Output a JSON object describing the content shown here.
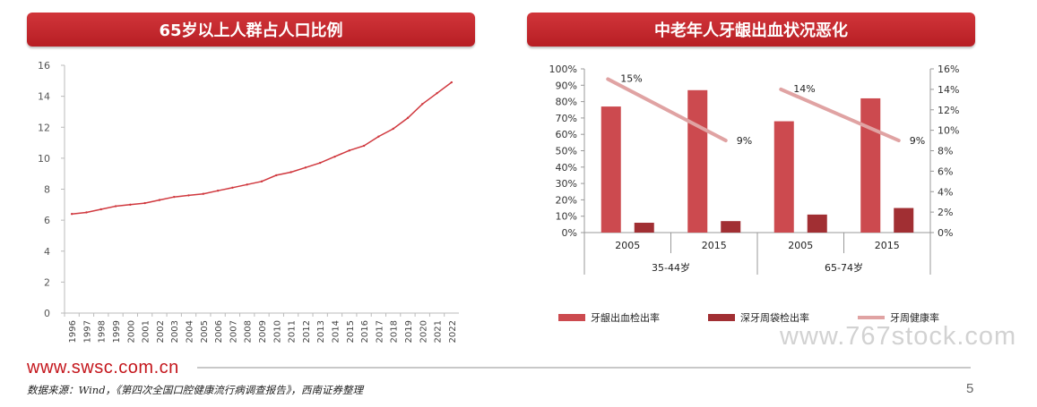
{
  "left_panel": {
    "title": "65岁以上人群占人口比例"
  },
  "right_panel": {
    "title": "中老年人牙龈出血状况恶化"
  },
  "footer": {
    "site": "www.swsc.com.cn",
    "source": "数据来源：Wind，《第四次全国口腔健康流行病调查报告》，西南证券整理",
    "page_number": "5",
    "watermark": "www.767stock.com"
  },
  "colors": {
    "banner": "#c4282e",
    "line": "#d0383e",
    "bar1": "#cc4a4f",
    "bar2": "#a12f33",
    "trend": "#e0a3a3"
  },
  "chart_data": [
    {
      "type": "line",
      "x": [
        "1996",
        "1997",
        "1998",
        "1999",
        "2000",
        "2001",
        "2002",
        "2003",
        "2004",
        "2005",
        "2006",
        "2007",
        "2008",
        "2009",
        "2010",
        "2011",
        "2012",
        "2013",
        "2014",
        "2015",
        "2016",
        "2017",
        "2018",
        "2019",
        "2020",
        "2021",
        "2022"
      ],
      "series": [
        {
          "values": [
            6.4,
            6.5,
            6.7,
            6.9,
            7.0,
            7.1,
            7.3,
            7.5,
            7.6,
            7.7,
            7.9,
            8.1,
            8.3,
            8.5,
            8.9,
            9.1,
            9.4,
            9.7,
            10.1,
            10.5,
            10.8,
            11.4,
            11.9,
            12.6,
            13.5,
            14.2,
            14.9
          ]
        }
      ],
      "yticks": [
        "0",
        "2",
        "4",
        "6",
        "8",
        "10",
        "12",
        "14",
        "16"
      ],
      "ylim": [
        0,
        16
      ]
    },
    {
      "type": "bar",
      "categories": [
        "2005",
        "2015",
        "2005",
        "2015"
      ],
      "groups": [
        "35-44岁",
        "65-74岁"
      ],
      "series": [
        {
          "name": "牙龈出血检出率",
          "values": [
            77,
            87,
            68,
            82
          ],
          "axis": "left"
        },
        {
          "name": "深牙周袋检出率",
          "values": [
            6,
            7,
            11,
            15
          ],
          "axis": "left"
        },
        {
          "name": "牙周健康率",
          "type": "line",
          "axis": "right",
          "values": [
            15,
            9,
            14,
            9
          ],
          "labels": [
            "15%",
            "9%",
            "14%",
            "9%"
          ]
        }
      ],
      "left_ticks": [
        "0%",
        "10%",
        "20%",
        "30%",
        "40%",
        "50%",
        "60%",
        "70%",
        "80%",
        "90%",
        "100%"
      ],
      "right_ticks": [
        "0%",
        "2%",
        "4%",
        "6%",
        "8%",
        "10%",
        "12%",
        "14%",
        "16%"
      ],
      "ylim_left": [
        0,
        100
      ],
      "ylim_right": [
        0,
        16
      ]
    }
  ]
}
